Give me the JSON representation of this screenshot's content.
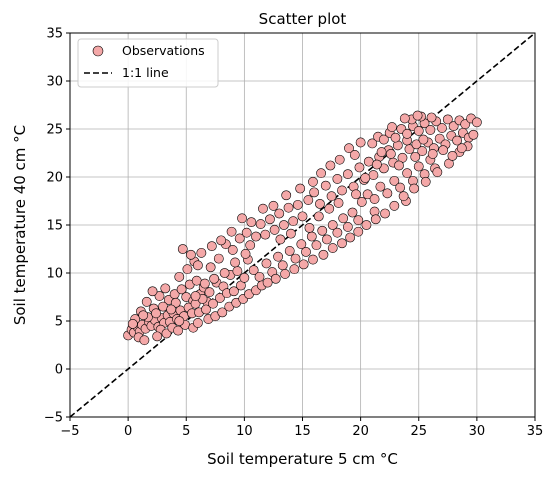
{
  "chart_data": {
    "type": "scatter",
    "title": "Scatter plot",
    "xlabel": "Soil temperature 5 cm",
    "ylabel": "Soil temperature 40 cm",
    "unit_label": "°C",
    "xlim": [
      -5,
      35
    ],
    "ylim": [
      -5,
      35
    ],
    "xticks": [
      -5,
      0,
      5,
      10,
      15,
      20,
      25,
      30,
      35
    ],
    "yticks": [
      -5,
      0,
      5,
      10,
      15,
      20,
      25,
      30,
      35
    ],
    "grid": true,
    "legend_position": "upper-left",
    "legend": [
      {
        "label": "Observations",
        "kind": "marker"
      },
      {
        "label": "1:1 line",
        "kind": "dashed-line"
      }
    ],
    "series": [
      {
        "name": "Observations",
        "color": "#f4a8a8",
        "edgecolor": "#000000",
        "points": [
          [
            0.0,
            3.5
          ],
          [
            0.3,
            4.1
          ],
          [
            0.5,
            3.8
          ],
          [
            0.8,
            4.4
          ],
          [
            1.0,
            3.9
          ],
          [
            1.2,
            4.6
          ],
          [
            1.5,
            4.2
          ],
          [
            1.8,
            4.9
          ],
          [
            2.0,
            4.5
          ],
          [
            2.3,
            5.1
          ],
          [
            2.6,
            4.4
          ],
          [
            2.9,
            5.3
          ],
          [
            3.1,
            4.8
          ],
          [
            3.4,
            5.6
          ],
          [
            3.6,
            4.9
          ],
          [
            3.9,
            5.8
          ],
          [
            4.2,
            5.2
          ],
          [
            4.5,
            6.1
          ],
          [
            4.8,
            5.5
          ],
          [
            0.6,
            5.2
          ],
          [
            1.1,
            6.0
          ],
          [
            1.7,
            5.4
          ],
          [
            2.2,
            6.3
          ],
          [
            2.8,
            4.1
          ],
          [
            3.3,
            3.7
          ],
          [
            3.8,
            4.3
          ],
          [
            4.3,
            4.0
          ],
          [
            0.9,
            3.3
          ],
          [
            1.4,
            3.0
          ],
          [
            2.5,
            3.4
          ],
          [
            3.5,
            7.2
          ],
          [
            4.0,
            7.8
          ],
          [
            4.6,
            8.3
          ],
          [
            5.0,
            7.5
          ],
          [
            5.3,
            8.8
          ],
          [
            5.6,
            7.1
          ],
          [
            5.9,
            9.2
          ],
          [
            6.2,
            7.8
          ],
          [
            6.5,
            8.5
          ],
          [
            6.8,
            7.0
          ],
          [
            5.2,
            6.4
          ],
          [
            5.5,
            5.8
          ],
          [
            5.8,
            6.8
          ],
          [
            6.1,
            5.9
          ],
          [
            6.4,
            7.3
          ],
          [
            6.7,
            6.2
          ],
          [
            7.0,
            8.0
          ],
          [
            7.3,
            6.8
          ],
          [
            7.6,
            9.0
          ],
          [
            7.9,
            7.4
          ],
          [
            8.2,
            8.6
          ],
          [
            8.5,
            7.9
          ],
          [
            8.8,
            9.8
          ],
          [
            9.1,
            8.1
          ],
          [
            9.4,
            10.2
          ],
          [
            9.7,
            8.7
          ],
          [
            10.0,
            9.5
          ],
          [
            4.4,
            9.6
          ],
          [
            5.1,
            10.4
          ],
          [
            5.7,
            11.2
          ],
          [
            6.3,
            12.1
          ],
          [
            7.2,
            12.8
          ],
          [
            7.8,
            11.5
          ],
          [
            8.4,
            13.0
          ],
          [
            9.0,
            12.4
          ],
          [
            9.6,
            13.6
          ],
          [
            10.2,
            14.2
          ],
          [
            10.5,
            12.9
          ],
          [
            11.0,
            13.8
          ],
          [
            11.4,
            15.1
          ],
          [
            11.8,
            14.0
          ],
          [
            12.2,
            15.6
          ],
          [
            12.6,
            14.5
          ],
          [
            13.0,
            16.2
          ],
          [
            13.4,
            15.0
          ],
          [
            13.8,
            16.8
          ],
          [
            14.2,
            15.4
          ],
          [
            14.6,
            17.1
          ],
          [
            15.0,
            15.9
          ],
          [
            10.8,
            10.3
          ],
          [
            11.3,
            9.6
          ],
          [
            11.9,
            11.0
          ],
          [
            12.4,
            10.1
          ],
          [
            12.9,
            11.7
          ],
          [
            13.3,
            10.8
          ],
          [
            13.9,
            12.3
          ],
          [
            14.4,
            11.5
          ],
          [
            14.9,
            13.0
          ],
          [
            15.3,
            12.2
          ],
          [
            15.8,
            13.8
          ],
          [
            16.2,
            12.9
          ],
          [
            16.7,
            14.4
          ],
          [
            17.1,
            13.5
          ],
          [
            17.6,
            15.0
          ],
          [
            18.0,
            14.2
          ],
          [
            18.5,
            15.7
          ],
          [
            18.9,
            14.8
          ],
          [
            19.3,
            16.3
          ],
          [
            19.8,
            15.5
          ],
          [
            15.5,
            17.6
          ],
          [
            16.0,
            18.4
          ],
          [
            16.5,
            17.2
          ],
          [
            17.0,
            19.1
          ],
          [
            17.5,
            18.0
          ],
          [
            18.0,
            19.8
          ],
          [
            18.4,
            18.6
          ],
          [
            18.9,
            20.3
          ],
          [
            19.4,
            19.0
          ],
          [
            19.9,
            21.0
          ],
          [
            20.3,
            19.7
          ],
          [
            20.7,
            21.6
          ],
          [
            21.1,
            20.2
          ],
          [
            21.6,
            22.1
          ],
          [
            22.0,
            20.9
          ],
          [
            22.4,
            22.8
          ],
          [
            22.8,
            21.5
          ],
          [
            23.2,
            23.3
          ],
          [
            23.6,
            22.0
          ],
          [
            24.0,
            23.8
          ],
          [
            20.1,
            17.4
          ],
          [
            20.6,
            18.2
          ],
          [
            21.2,
            17.7
          ],
          [
            21.7,
            19.0
          ],
          [
            22.3,
            18.3
          ],
          [
            22.9,
            19.6
          ],
          [
            23.4,
            18.9
          ],
          [
            24.0,
            20.4
          ],
          [
            24.5,
            19.6
          ],
          [
            25.0,
            21.1
          ],
          [
            25.5,
            20.3
          ],
          [
            26.0,
            21.8
          ],
          [
            26.4,
            20.9
          ],
          [
            21.0,
            23.5
          ],
          [
            21.5,
            24.2
          ],
          [
            22.0,
            23.9
          ],
          [
            22.5,
            24.6
          ],
          [
            23.0,
            24.1
          ],
          [
            23.5,
            25.0
          ],
          [
            24.0,
            24.5
          ],
          [
            24.5,
            25.3
          ],
          [
            25.0,
            24.8
          ],
          [
            25.5,
            25.6
          ],
          [
            26.0,
            24.9
          ],
          [
            26.5,
            25.8
          ],
          [
            27.0,
            25.1
          ],
          [
            27.5,
            26.0
          ],
          [
            28.0,
            25.3
          ],
          [
            28.5,
            25.9
          ],
          [
            29.0,
            25.5
          ],
          [
            29.5,
            26.1
          ],
          [
            30.0,
            25.7
          ],
          [
            24.2,
            22.9
          ],
          [
            24.8,
            23.4
          ],
          [
            25.3,
            22.7
          ],
          [
            25.8,
            23.6
          ],
          [
            26.3,
            23.0
          ],
          [
            26.8,
            24.0
          ],
          [
            27.3,
            23.4
          ],
          [
            27.8,
            24.3
          ],
          [
            28.3,
            23.8
          ],
          [
            28.8,
            24.6
          ],
          [
            29.3,
            24.1
          ],
          [
            26.1,
            26.2
          ],
          [
            25.2,
            26.3
          ],
          [
            24.4,
            26.0
          ],
          [
            23.8,
            26.1
          ],
          [
            22.7,
            25.2
          ],
          [
            21.8,
            22.6
          ],
          [
            23.9,
            17.5
          ],
          [
            21.2,
            16.4
          ],
          [
            19.0,
            23.0
          ],
          [
            19.5,
            22.3
          ],
          [
            20.0,
            23.6
          ],
          [
            18.2,
            21.8
          ],
          [
            17.4,
            21.2
          ],
          [
            16.6,
            20.4
          ],
          [
            15.9,
            19.5
          ],
          [
            14.8,
            18.8
          ],
          [
            13.6,
            18.1
          ],
          [
            12.5,
            17.0
          ],
          [
            11.6,
            16.7
          ],
          [
            10.6,
            15.3
          ],
          [
            9.8,
            15.7
          ],
          [
            8.9,
            14.3
          ],
          [
            8.0,
            13.4
          ],
          [
            7.1,
            10.6
          ],
          [
            6.0,
            10.8
          ],
          [
            5.4,
            11.9
          ],
          [
            4.7,
            12.5
          ],
          [
            3.2,
            8.4
          ],
          [
            2.7,
            7.6
          ],
          [
            2.1,
            8.1
          ],
          [
            1.6,
            7.0
          ],
          [
            3.0,
            6.5
          ],
          [
            4.1,
            6.9
          ],
          [
            4.9,
            4.6
          ],
          [
            5.6,
            4.3
          ],
          [
            6.0,
            4.8
          ],
          [
            6.9,
            5.2
          ],
          [
            7.5,
            5.5
          ],
          [
            8.1,
            5.9
          ],
          [
            8.7,
            6.5
          ],
          [
            9.3,
            6.9
          ],
          [
            9.9,
            7.3
          ],
          [
            10.4,
            7.8
          ],
          [
            11.0,
            8.2
          ],
          [
            11.5,
            8.7
          ],
          [
            12.0,
            9.0
          ],
          [
            12.7,
            9.4
          ],
          [
            13.5,
            9.9
          ],
          [
            14.3,
            10.4
          ],
          [
            15.1,
            10.9
          ],
          [
            15.9,
            11.4
          ],
          [
            16.8,
            11.9
          ],
          [
            17.6,
            12.6
          ],
          [
            18.4,
            13.1
          ],
          [
            19.1,
            13.7
          ],
          [
            19.8,
            14.3
          ],
          [
            20.5,
            15.0
          ],
          [
            21.3,
            15.6
          ],
          [
            22.1,
            16.2
          ],
          [
            22.9,
            17.0
          ],
          [
            23.7,
            18.0
          ],
          [
            24.6,
            18.8
          ],
          [
            25.6,
            19.5
          ],
          [
            26.6,
            20.5
          ],
          [
            27.6,
            21.4
          ],
          [
            28.5,
            22.6
          ],
          [
            29.2,
            23.2
          ],
          [
            24.9,
            26.4
          ],
          [
            10.3,
            11.4
          ],
          [
            13.1,
            13.5
          ],
          [
            14.0,
            14.1
          ],
          [
            15.6,
            14.7
          ],
          [
            16.4,
            15.9
          ],
          [
            17.3,
            16.7
          ],
          [
            18.1,
            17.3
          ],
          [
            19.6,
            18.2
          ],
          [
            20.4,
            19.9
          ],
          [
            21.4,
            21.3
          ],
          [
            22.6,
            22.4
          ],
          [
            23.3,
            21.2
          ],
          [
            24.7,
            22.1
          ],
          [
            25.4,
            23.9
          ],
          [
            26.2,
            22.4
          ],
          [
            27.1,
            22.8
          ],
          [
            27.9,
            22.2
          ],
          [
            28.7,
            23.0
          ],
          [
            29.7,
            24.4
          ],
          [
            0.4,
            4.7
          ],
          [
            1.3,
            5.6
          ],
          [
            2.4,
            5.8
          ],
          [
            3.7,
            6.2
          ],
          [
            4.4,
            5.0
          ],
          [
            5.8,
            7.6
          ],
          [
            6.6,
            8.9
          ],
          [
            7.4,
            9.4
          ],
          [
            8.3,
            10.0
          ],
          [
            9.2,
            11.1
          ],
          [
            10.1,
            12.0
          ]
        ]
      }
    ]
  }
}
